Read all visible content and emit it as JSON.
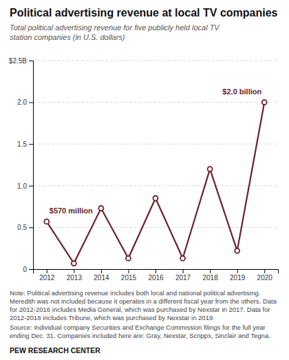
{
  "chart_data": {
    "type": "line",
    "title": "Political advertising revenue at local TV companies",
    "subtitle": "Total political advertising revenue for five publicly held local TV\nstation companies (in U.S. dollars)",
    "x": [
      2012,
      2013,
      2014,
      2015,
      2016,
      2017,
      2018,
      2019,
      2020
    ],
    "values": [
      0.57,
      0.07,
      0.73,
      0.13,
      0.85,
      0.13,
      1.2,
      0.22,
      2.0
    ],
    "color": "#6b1f2a",
    "marker": "circle",
    "xlim": [
      2011.5,
      2020.5
    ],
    "xticks": [
      2012,
      2013,
      2014,
      2015,
      2016,
      2017,
      2018,
      2019,
      2020
    ],
    "ylim": [
      0,
      2.5
    ],
    "yticks": [
      0,
      0.5,
      {
        "value": 1.0,
        "label": "1.0"
      },
      1.5,
      {
        "value": 2.0,
        "label": "2.0"
      },
      {
        "value": 2.5,
        "label": "$2.5B"
      }
    ],
    "grid": true,
    "annotations": [
      {
        "text": "$570 million",
        "x": 2012,
        "y": 0.57
      },
      {
        "text": "$2.0 billion",
        "x": 2020,
        "y": 2.0
      }
    ],
    "note": "Note: Political advertising revenue includes both local and national political advertising. Meredith was not included because it operates in a different fiscal year from the others. Data for 2012-2016 includes Media General, which was purchased by Nexstar in 2017. Data for 2012-2018 includes Tribune, which was purchased by Nexstar in 2019.",
    "source": "Source: Individual company Securities and Exchange Commission filings for the full year ending Dec. 31. Companies included here are: Gray, Nexstar, Scripps, Sinclair and Tegna.",
    "footer": "PEW RESEARCH CENTER"
  }
}
